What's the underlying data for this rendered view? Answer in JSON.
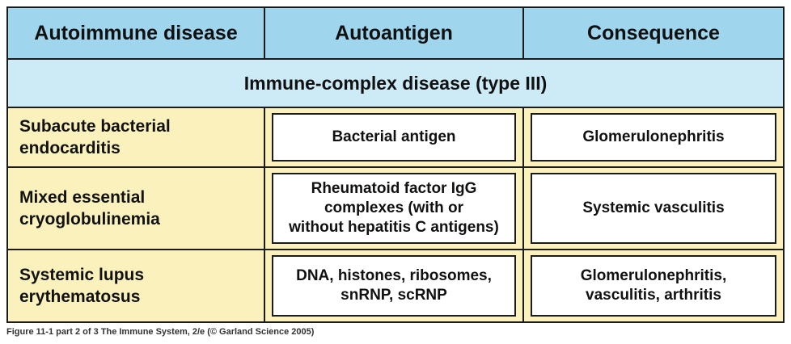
{
  "header": {
    "col1": "Autoimmune disease",
    "col2": "Autoantigen",
    "col3": "Consequence"
  },
  "section": {
    "title": "Immune-complex disease (type III)"
  },
  "rows": [
    {
      "disease": "Subacute bacterial\nendocarditis",
      "autoantigen": "Bacterial antigen",
      "consequence": "Glomerulonephritis"
    },
    {
      "disease": "Mixed essential\ncryoglobulinemia",
      "autoantigen": "Rheumatoid factor IgG\ncomplexes (with or\nwithout hepatitis C antigens)",
      "consequence": "Systemic vasculitis"
    },
    {
      "disease": "Systemic lupus\nerythematosus",
      "autoantigen": "DNA, histones, ribosomes,\nsnRNP, scRNP",
      "consequence": "Glomerulonephritis,\nvasculitis, arthritis"
    }
  ],
  "caption": "Figure 11-1 part 2 of 3  The Immune System, 2/e (© Garland Science 2005)",
  "colors": {
    "header_bg": "#9fd6ee",
    "section_bg": "#cdeaf7",
    "row_bg": "#fbf1bc",
    "box_bg": "#ffffff",
    "border": "#1b1b1b"
  }
}
